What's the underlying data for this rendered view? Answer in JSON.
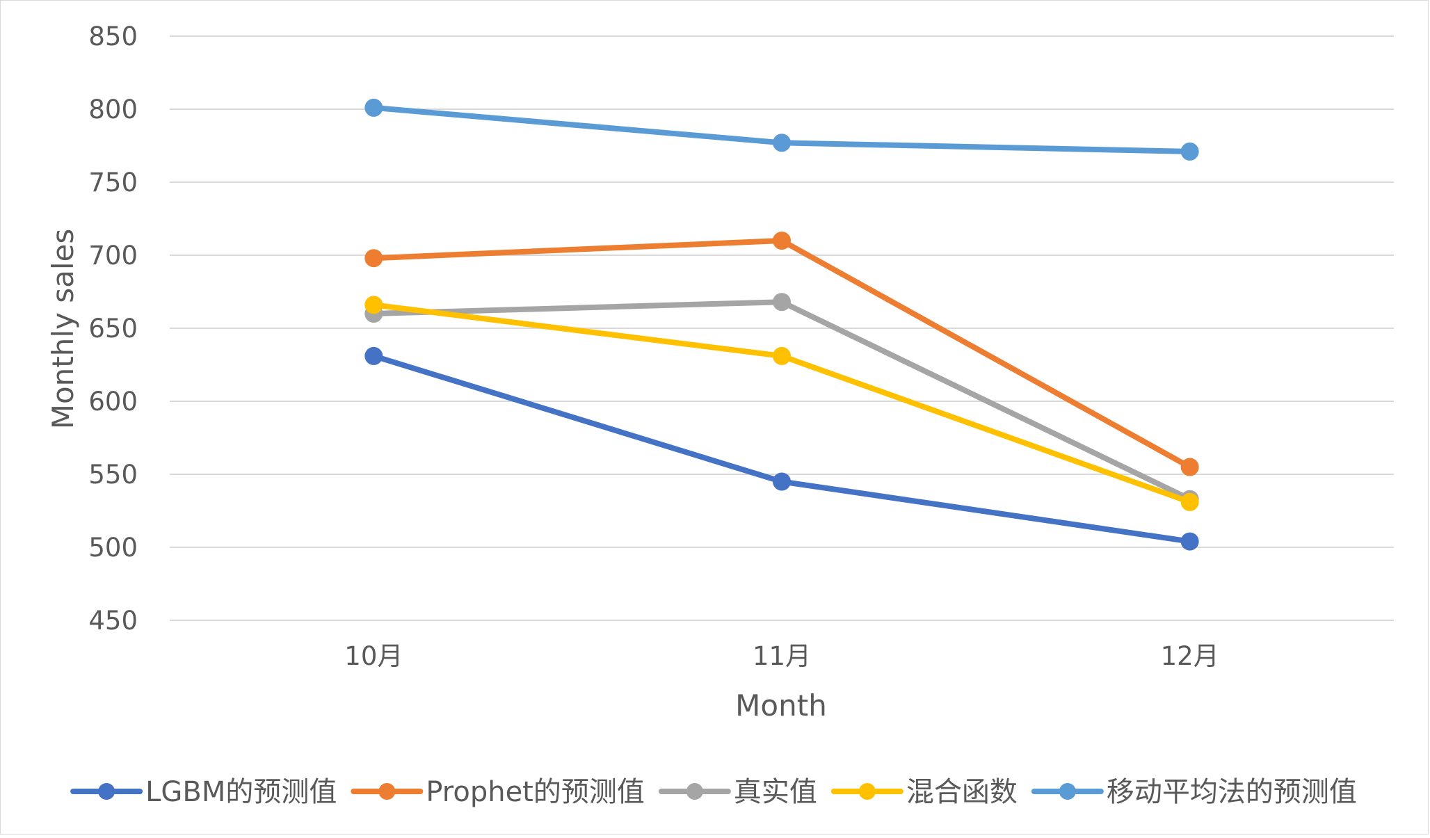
{
  "chart_data": {
    "type": "line",
    "title": "",
    "xlabel": "Month",
    "ylabel": "Monthly sales",
    "categories": [
      "10月",
      "11月",
      "12月"
    ],
    "ylim": [
      450,
      850
    ],
    "yticks": [
      450,
      500,
      550,
      600,
      650,
      700,
      750,
      800,
      850
    ],
    "grid": true,
    "legend_position": "bottom",
    "series": [
      {
        "name": "LGBM的预测值",
        "color": "#4472C4",
        "values": [
          631,
          545,
          504
        ]
      },
      {
        "name": "Prophet的预测值",
        "color": "#ED7D31",
        "values": [
          698,
          710,
          555
        ]
      },
      {
        "name": "真实值",
        "color": "#A5A5A5",
        "values": [
          660,
          668,
          533
        ]
      },
      {
        "name": "混合函数",
        "color": "#FFC000",
        "values": [
          666,
          631,
          531
        ]
      },
      {
        "name": "移动平均法的预测值",
        "color": "#5B9BD5",
        "values": [
          801,
          777,
          771
        ]
      }
    ]
  }
}
